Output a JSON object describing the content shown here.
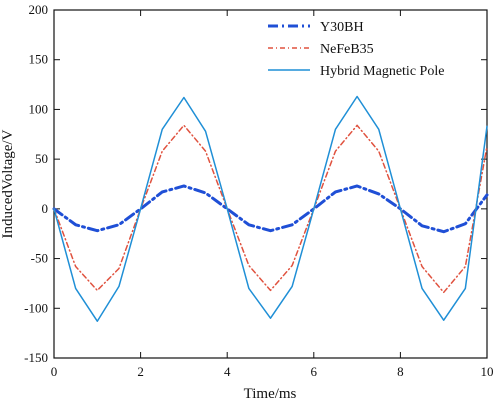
{
  "chart_data": {
    "type": "line",
    "xlabel": "Time/ms",
    "ylabel": "InducedVoltage/V",
    "xlim": [
      0,
      10
    ],
    "ylim": [
      -150,
      200
    ],
    "x_ticks": [
      0,
      2,
      4,
      6,
      8,
      10
    ],
    "y_ticks": [
      -150,
      -100,
      -50,
      0,
      50,
      100,
      150,
      200
    ],
    "grid": false,
    "legend_position": "top-right",
    "colors": {
      "y30bh": "#1f4fd6",
      "nefeb35": "#e0523f",
      "hybrid": "#1f8fd6"
    },
    "x": [
      0,
      0.5,
      1,
      1.5,
      2,
      2.5,
      3,
      3.5,
      4,
      4.5,
      5,
      5.5,
      6,
      6.5,
      7,
      7.5,
      8,
      8.5,
      9,
      9.5,
      10
    ],
    "series": [
      {
        "name": "Y30BH",
        "color": "#1f4fd6",
        "dash": "10,4,2,4",
        "width": 3,
        "values": [
          0,
          -16,
          -22,
          -16,
          0,
          17,
          23,
          16,
          0,
          -16,
          -22,
          -16,
          0,
          17,
          23,
          15,
          0,
          -17,
          -23,
          -15,
          14
        ]
      },
      {
        "name": "NeFeB35",
        "color": "#e0523f",
        "dash": "5,3,1,3",
        "width": 1.5,
        "values": [
          0,
          -58,
          -82,
          -60,
          0,
          58,
          84,
          58,
          0,
          -57,
          -82,
          -57,
          0,
          58,
          84,
          58,
          0,
          -58,
          -84,
          -58,
          63
        ]
      },
      {
        "name": "Hybrid Magnetic Pole",
        "color": "#1f8fd6",
        "dash": "",
        "width": 1.5,
        "values": [
          0,
          -80,
          -113,
          -78,
          0,
          80,
          112,
          78,
          0,
          -80,
          -110,
          -78,
          0,
          80,
          113,
          80,
          0,
          -80,
          -112,
          -80,
          83
        ]
      }
    ]
  }
}
